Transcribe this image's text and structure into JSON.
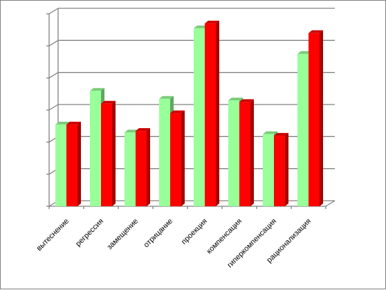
{
  "chart_data": {
    "type": "bar",
    "title": "",
    "xlabel": "",
    "ylabel": "",
    "ylim": [
      0,
      6
    ],
    "grid": true,
    "legend": "none",
    "categories": [
      "вытеснение",
      "регрессия",
      "замещение",
      "отрицание",
      "проекция",
      "компенсация",
      "гиперкомпенсация",
      "рационализация"
    ],
    "series": [
      {
        "color": "#99ff99",
        "values": [
          2.55,
          3.6,
          2.3,
          3.35,
          5.55,
          3.3,
          2.25,
          4.75
        ]
      },
      {
        "color": "#ff0000",
        "values": [
          2.55,
          3.2,
          2.35,
          2.9,
          5.7,
          3.25,
          2.2,
          5.4
        ]
      }
    ]
  }
}
